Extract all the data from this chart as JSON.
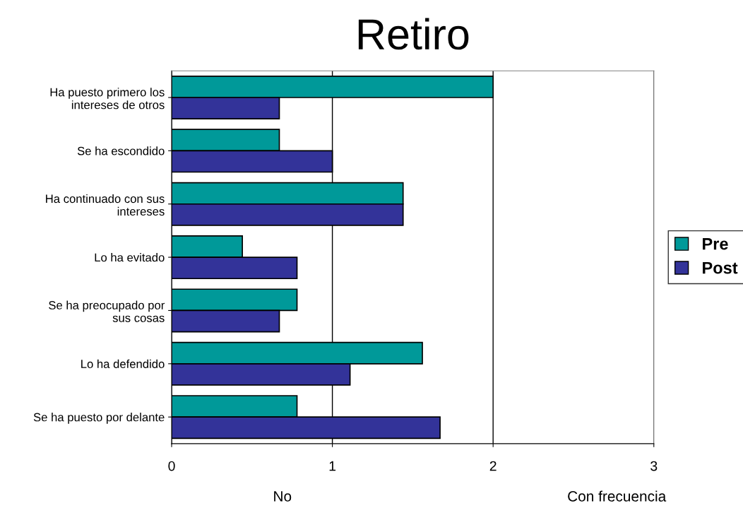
{
  "chart_data": {
    "type": "bar",
    "orientation": "horizontal",
    "title": "Retiro",
    "categories": [
      "Ha puesto primero los\nintereses de otros",
      "Se ha escondido",
      "Ha continuado con sus\nintereses",
      "Lo ha evitado",
      "Se ha preocupado por\nsus cosas",
      "Lo ha defendido",
      "Se ha puesto por delante"
    ],
    "series": [
      {
        "name": "Pre",
        "color": "#009999",
        "values": [
          2.0,
          0.67,
          1.44,
          0.44,
          0.78,
          1.56,
          0.78
        ]
      },
      {
        "name": "Post",
        "color": "#333399",
        "values": [
          0.67,
          1.0,
          1.44,
          0.78,
          0.67,
          1.11,
          1.67
        ]
      }
    ],
    "xlim": [
      0,
      3
    ],
    "xticks": [
      0,
      1,
      2,
      3
    ],
    "grid": "x",
    "legend": "right",
    "annotations": [
      "No",
      "Con frecuencia"
    ]
  }
}
